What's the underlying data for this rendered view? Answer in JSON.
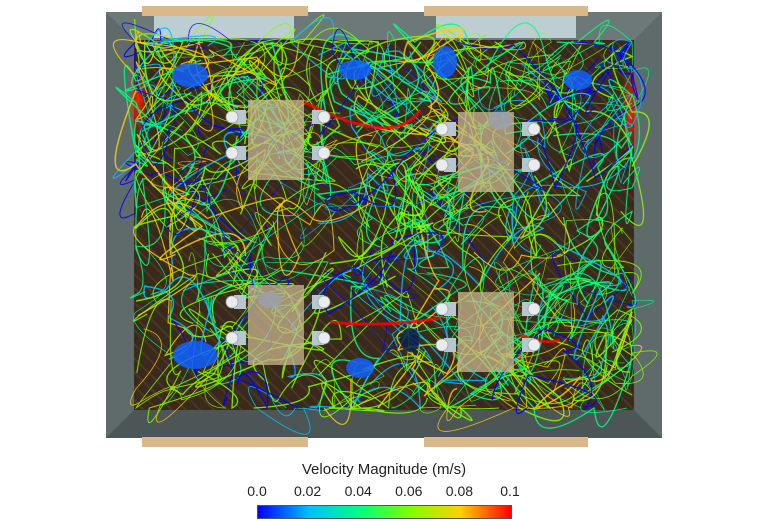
{
  "colorbar": {
    "title": "Velocity Magnitude (m/s)",
    "ticks": [
      "0.0",
      "0.02",
      "0.04",
      "0.06",
      "0.08",
      "0.1"
    ],
    "range": [
      0.0,
      0.1
    ],
    "colormap": [
      "#0000ff",
      "#00bfff",
      "#00ff80",
      "#80ff00",
      "#ffd000",
      "#ff0000"
    ]
  },
  "colors": {
    "wall": "#5f6b6b",
    "wall_dark": "#4c5656",
    "floor": "#3a2a1c",
    "window": "#d9b98a",
    "desk": "#c9b68d",
    "chair": "#e8ecef"
  },
  "room": {
    "desk_groups": 4,
    "chairs_per_group": 4
  }
}
